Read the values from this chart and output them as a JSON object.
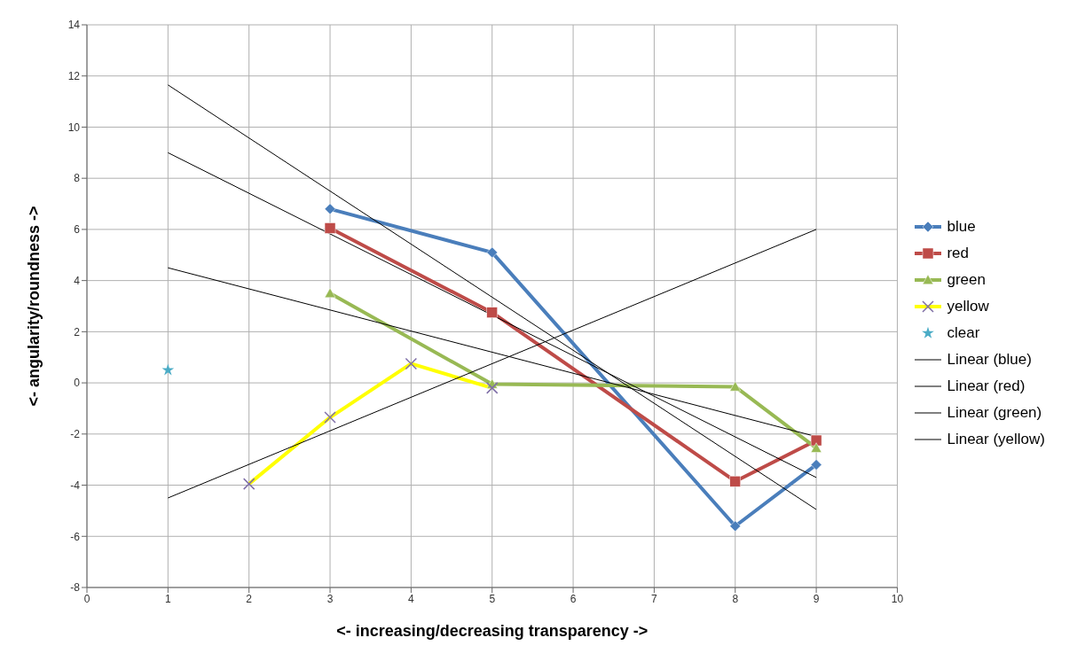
{
  "chart_data": {
    "type": "line",
    "xlabel": "<- increasing/decreasing transparency ->",
    "ylabel": "<- angularity/roundness ->",
    "xlim": [
      0,
      10
    ],
    "xticks": [
      0,
      1,
      2,
      3,
      4,
      5,
      6,
      7,
      8,
      9,
      10
    ],
    "ylim": [
      -8,
      14
    ],
    "yticks": [
      -8,
      -6,
      -4,
      -2,
      0,
      2,
      4,
      6,
      8,
      10,
      12,
      14
    ],
    "grid": true,
    "legend": "right",
    "series": [
      {
        "name": "blue",
        "color": "#4a7ebb",
        "marker": "diamond",
        "x": [
          3,
          5,
          8,
          9
        ],
        "values": [
          6.8,
          5.1,
          -5.6,
          -3.2
        ]
      },
      {
        "name": "red",
        "color": "#be4b48",
        "marker": "square",
        "x": [
          3,
          5,
          8,
          9
        ],
        "values": [
          6.05,
          2.75,
          -3.85,
          -2.25
        ]
      },
      {
        "name": "green",
        "color": "#98b954",
        "marker": "triangle",
        "x": [
          3,
          5,
          8,
          9
        ],
        "values": [
          3.5,
          -0.05,
          -0.15,
          -2.55
        ]
      },
      {
        "name": "yellow",
        "color": "#ffff00",
        "marker": "cross",
        "x": [
          2,
          3,
          4,
          5
        ],
        "values": [
          -3.95,
          -1.35,
          0.75,
          -0.2
        ]
      },
      {
        "name": "clear",
        "type": "scatter",
        "color": "#4bacc6",
        "marker": "star",
        "x": [
          1
        ],
        "values": [
          0.5
        ]
      },
      {
        "name": "Linear (blue)",
        "color": "#000000",
        "marker": "none",
        "x": [
          1,
          9
        ],
        "values": [
          11.65,
          -4.95
        ]
      },
      {
        "name": "Linear (red)",
        "color": "#000000",
        "marker": "none",
        "x": [
          1,
          9
        ],
        "values": [
          9,
          -3.7
        ]
      },
      {
        "name": "Linear (green)",
        "color": "#000000",
        "marker": "none",
        "x": [
          1,
          9
        ],
        "values": [
          4.5,
          -2.1
        ]
      },
      {
        "name": "Linear (yellow)",
        "color": "#000000",
        "marker": "none",
        "x": [
          1,
          9
        ],
        "values": [
          -4.5,
          6
        ]
      }
    ]
  }
}
